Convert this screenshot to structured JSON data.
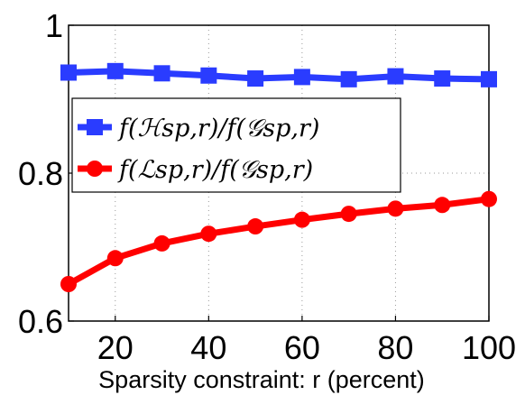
{
  "chart_data": {
    "type": "line",
    "x": [
      10,
      20,
      30,
      40,
      50,
      60,
      70,
      80,
      90,
      100
    ],
    "xlim": [
      10,
      100
    ],
    "ylim": [
      0.6,
      1.0
    ],
    "xticks": [
      "20",
      "40",
      "60",
      "80",
      "100"
    ],
    "yticks": [
      "0.6",
      "0.8",
      "1"
    ],
    "xlabel": "Sparsity constraint:  r (percent)",
    "ylabel": "",
    "title": "",
    "grid": true,
    "legend_position": "upper-left",
    "series": [
      {
        "name": "f(ℋsp,r)/f(𝒢sp,r)",
        "color": "#2a3cff",
        "marker": "square",
        "values": [
          0.936,
          0.938,
          0.935,
          0.932,
          0.928,
          0.93,
          0.927,
          0.931,
          0.928,
          0.927
        ]
      },
      {
        "name": "f(ℒsp,r)/f(𝒢sp,r)",
        "color": "#ff0000",
        "marker": "circle",
        "values": [
          0.65,
          0.685,
          0.705,
          0.718,
          0.728,
          0.737,
          0.745,
          0.752,
          0.757,
          0.765
        ]
      }
    ]
  }
}
